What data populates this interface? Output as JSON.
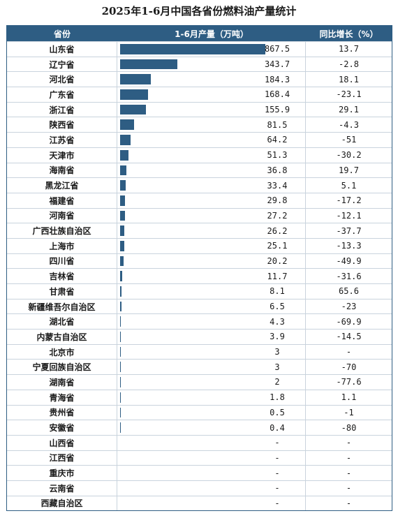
{
  "chart_data": {
    "type": "table",
    "title": "2025年1-6月中国各省份燃料油产量统计",
    "columns": [
      "省份",
      "1-6月产量（万吨）",
      "同比增长（%）"
    ],
    "value_max": 867.5,
    "rows": [
      {
        "province": "山东省",
        "output": 867.5,
        "output_label": "867.5",
        "yoy": "13.7"
      },
      {
        "province": "辽宁省",
        "output": 343.7,
        "output_label": "343.7",
        "yoy": "-2.8"
      },
      {
        "province": "河北省",
        "output": 184.3,
        "output_label": "184.3",
        "yoy": "18.1"
      },
      {
        "province": "广东省",
        "output": 168.4,
        "output_label": "168.4",
        "yoy": "-23.1"
      },
      {
        "province": "浙江省",
        "output": 155.9,
        "output_label": "155.9",
        "yoy": "29.1"
      },
      {
        "province": "陕西省",
        "output": 81.5,
        "output_label": "81.5",
        "yoy": "-4.3"
      },
      {
        "province": "江苏省",
        "output": 64.2,
        "output_label": "64.2",
        "yoy": "-51"
      },
      {
        "province": "天津市",
        "output": 51.3,
        "output_label": "51.3",
        "yoy": "-30.2"
      },
      {
        "province": "海南省",
        "output": 36.8,
        "output_label": "36.8",
        "yoy": "19.7"
      },
      {
        "province": "黑龙江省",
        "output": 33.4,
        "output_label": "33.4",
        "yoy": "5.1"
      },
      {
        "province": "福建省",
        "output": 29.8,
        "output_label": "29.8",
        "yoy": "-17.2"
      },
      {
        "province": "河南省",
        "output": 27.2,
        "output_label": "27.2",
        "yoy": "-12.1"
      },
      {
        "province": "广西壮族自治区",
        "output": 26.2,
        "output_label": "26.2",
        "yoy": "-37.7"
      },
      {
        "province": "上海市",
        "output": 25.1,
        "output_label": "25.1",
        "yoy": "-13.3"
      },
      {
        "province": "四川省",
        "output": 20.2,
        "output_label": "20.2",
        "yoy": "-49.9"
      },
      {
        "province": "吉林省",
        "output": 11.7,
        "output_label": "11.7",
        "yoy": "-31.6"
      },
      {
        "province": "甘肃省",
        "output": 8.1,
        "output_label": "8.1",
        "yoy": "65.6"
      },
      {
        "province": "新疆维吾尔自治区",
        "output": 6.5,
        "output_label": "6.5",
        "yoy": "-23"
      },
      {
        "province": "湖北省",
        "output": 4.3,
        "output_label": "4.3",
        "yoy": "-69.9"
      },
      {
        "province": "内蒙古自治区",
        "output": 3.9,
        "output_label": "3.9",
        "yoy": "-14.5"
      },
      {
        "province": "北京市",
        "output": 3,
        "output_label": "3",
        "yoy": "-"
      },
      {
        "province": "宁夏回族自治区",
        "output": 3,
        "output_label": "3",
        "yoy": "-70"
      },
      {
        "province": "湖南省",
        "output": 2,
        "output_label": "2",
        "yoy": "-77.6"
      },
      {
        "province": "青海省",
        "output": 1.8,
        "output_label": "1.8",
        "yoy": "1.1"
      },
      {
        "province": "贵州省",
        "output": 0.5,
        "output_label": "0.5",
        "yoy": "-1"
      },
      {
        "province": "安徽省",
        "output": 0.4,
        "output_label": "0.4",
        "yoy": "-80"
      },
      {
        "province": "山西省",
        "output": null,
        "output_label": "-",
        "yoy": "-"
      },
      {
        "province": "江西省",
        "output": null,
        "output_label": "-",
        "yoy": "-"
      },
      {
        "province": "重庆市",
        "output": null,
        "output_label": "-",
        "yoy": "-"
      },
      {
        "province": "云南省",
        "output": null,
        "output_label": "-",
        "yoy": "-"
      },
      {
        "province": "西藏自治区",
        "output": null,
        "output_label": "-",
        "yoy": "-"
      }
    ],
    "bar_color": "#2e5d83",
    "header_color": "#2e5d83"
  }
}
